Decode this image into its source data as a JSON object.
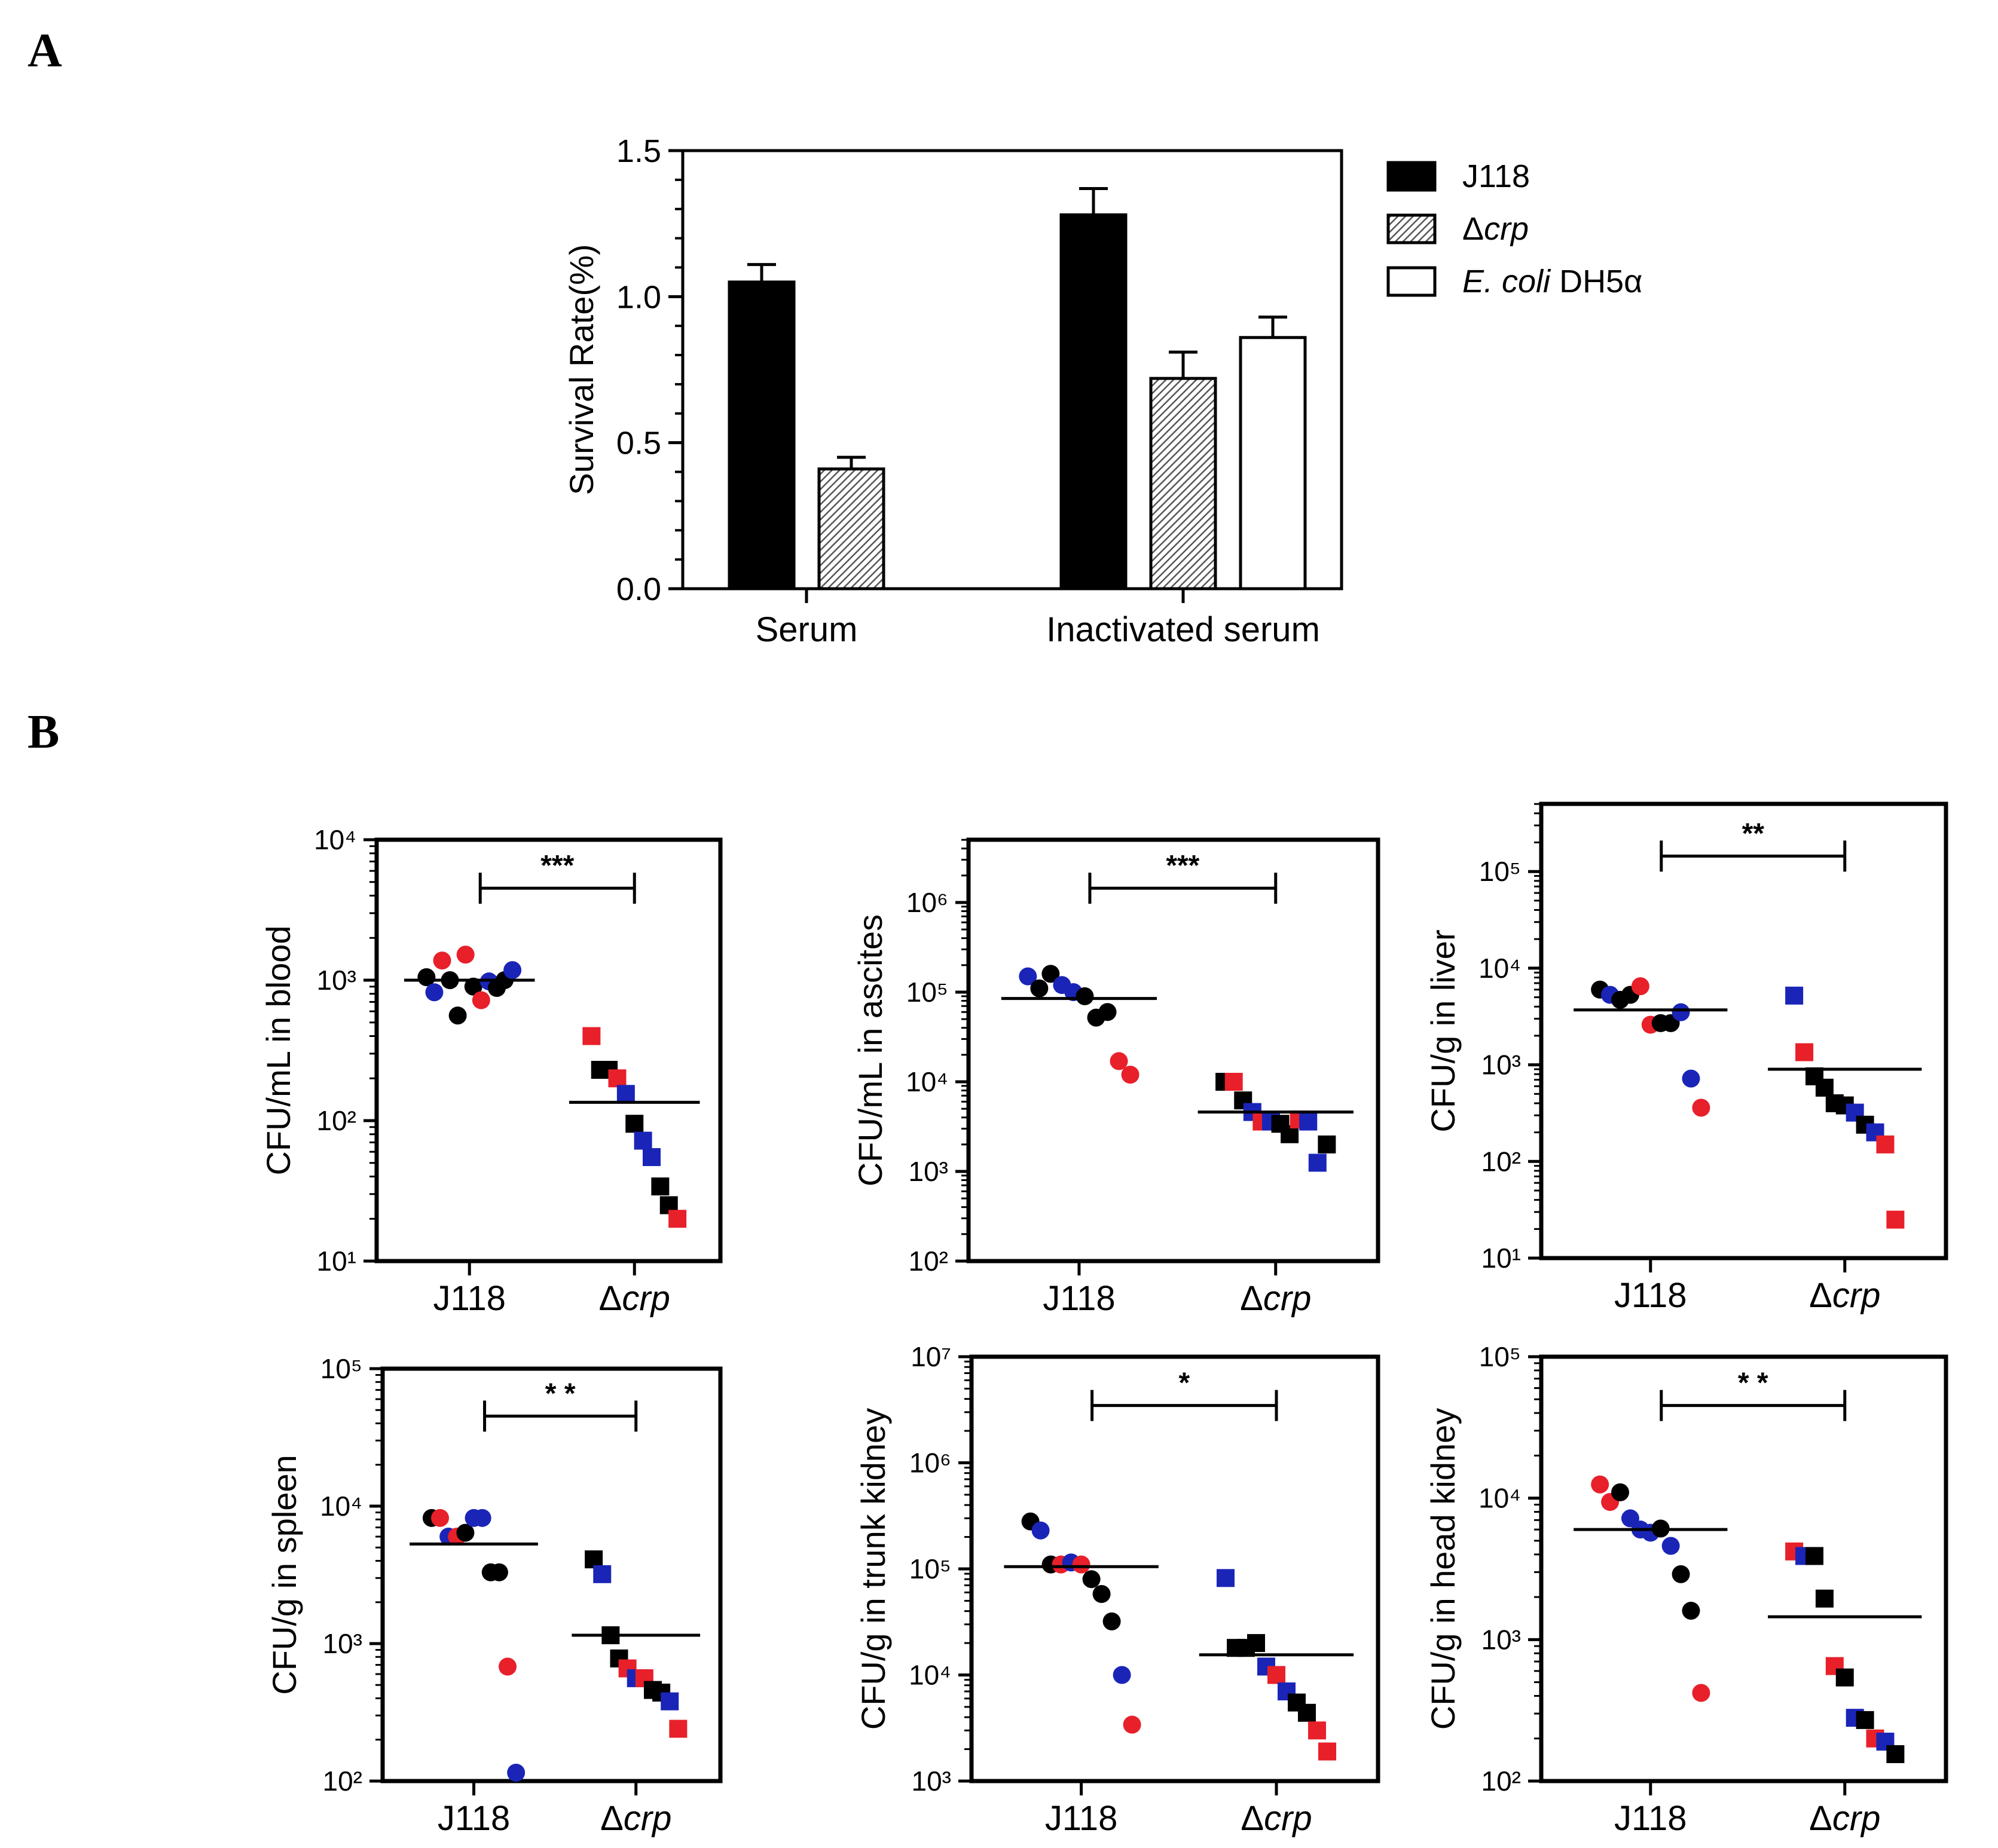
{
  "panels": {
    "a_label": "A",
    "b_label": "B"
  },
  "colors": {
    "black": "#000000",
    "red": "#e8202a",
    "blue": "#1a25b8",
    "hatch": "#555555"
  },
  "chart_data": [
    {
      "type": "bar",
      "panel": "A",
      "ylabel": "Survival Rate(%)",
      "ylim": [
        0,
        1.5
      ],
      "yticks": [
        "0.0",
        "0.5",
        "1.0",
        "1.5"
      ],
      "categories": [
        "Serum",
        "Inactivated serum"
      ],
      "series": [
        {
          "name": "J118",
          "style": "solid-black",
          "values": [
            1.05,
            1.28
          ],
          "errors": [
            0.06,
            0.09
          ]
        },
        {
          "name": "Δcrp",
          "name_prefix": "Δ",
          "name_italic": "crp",
          "style": "hatched",
          "values": [
            0.41,
            0.72
          ],
          "errors": [
            0.04,
            0.09
          ]
        },
        {
          "name": "E. coli DH5α",
          "name_italic": "E. coli",
          "name_rest": " DH5α",
          "style": "open-white",
          "values": [
            null,
            0.86
          ],
          "errors": [
            null,
            0.07
          ]
        }
      ],
      "legend_position": "right"
    },
    {
      "type": "scatter",
      "panel": "B",
      "scale": "log",
      "ylabel": "CFU/mL in blood",
      "ylim_exp": [
        1,
        4
      ],
      "categories": [
        "J118",
        "Δcrp"
      ],
      "significance": "***",
      "means": [
        1000,
        135
      ],
      "groups": [
        [
          {
            "v": 1050,
            "c": "black"
          },
          {
            "v": 820,
            "c": "blue"
          },
          {
            "v": 1380,
            "c": "red"
          },
          {
            "v": 1000,
            "c": "black"
          },
          {
            "v": 560,
            "c": "black"
          },
          {
            "v": 1520,
            "c": "red"
          },
          {
            "v": 900,
            "c": "black"
          },
          {
            "v": 720,
            "c": "red"
          },
          {
            "v": 980,
            "c": "blue"
          },
          {
            "v": 880,
            "c": "black"
          },
          {
            "v": 1000,
            "c": "black"
          },
          {
            "v": 1180,
            "c": "blue"
          }
        ],
        [
          {
            "v": 400,
            "c": "red"
          },
          {
            "v": 230,
            "c": "black"
          },
          {
            "v": 230,
            "c": "black"
          },
          {
            "v": 200,
            "c": "red"
          },
          {
            "v": 155,
            "c": "blue"
          },
          {
            "v": 95,
            "c": "black"
          },
          {
            "v": 72,
            "c": "blue"
          },
          {
            "v": 55,
            "c": "blue"
          },
          {
            "v": 34,
            "c": "black"
          },
          {
            "v": 25,
            "c": "black"
          },
          {
            "v": 20,
            "c": "red"
          }
        ]
      ]
    },
    {
      "type": "scatter",
      "panel": "B",
      "scale": "log",
      "ylabel": "CFU/mL in ascites",
      "ylim_exp": [
        2,
        6.7
      ],
      "categories": [
        "J118",
        "Δcrp"
      ],
      "significance": "***",
      "means": [
        85000,
        4600
      ],
      "groups": [
        [
          {
            "v": 150000,
            "c": "blue"
          },
          {
            "v": 110000,
            "c": "black"
          },
          {
            "v": 160000,
            "c": "black"
          },
          {
            "v": 120000,
            "c": "blue"
          },
          {
            "v": 100000,
            "c": "blue"
          },
          {
            "v": 90000,
            "c": "black"
          },
          {
            "v": 52000,
            "c": "black"
          },
          {
            "v": 60000,
            "c": "black"
          },
          {
            "v": 17000,
            "c": "red"
          },
          {
            "v": 12000,
            "c": "red"
          }
        ],
        [
          {
            "v": 10000,
            "c": "black"
          },
          {
            "v": 10000,
            "c": "red"
          },
          {
            "v": 6200,
            "c": "black"
          },
          {
            "v": 4600,
            "c": "blue"
          },
          {
            "v": 3600,
            "c": "red"
          },
          {
            "v": 3600,
            "c": "blue"
          },
          {
            "v": 3400,
            "c": "black"
          },
          {
            "v": 2600,
            "c": "black"
          },
          {
            "v": 3800,
            "c": "red"
          },
          {
            "v": 3600,
            "c": "blue"
          },
          {
            "v": 1250,
            "c": "blue"
          },
          {
            "v": 2000,
            "c": "black"
          }
        ]
      ]
    },
    {
      "type": "scatter",
      "panel": "B",
      "scale": "log",
      "ylabel": "CFU/g in liver",
      "ylim_exp": [
        1,
        5.7
      ],
      "categories": [
        "J118",
        "Δcrp"
      ],
      "significance": "**",
      "means": [
        3700,
        900
      ],
      "groups": [
        [
          {
            "v": 6000,
            "c": "black"
          },
          {
            "v": 5300,
            "c": "blue"
          },
          {
            "v": 4700,
            "c": "black"
          },
          {
            "v": 5300,
            "c": "black"
          },
          {
            "v": 6500,
            "c": "red"
          },
          {
            "v": 2600,
            "c": "red"
          },
          {
            "v": 2700,
            "c": "black"
          },
          {
            "v": 2700,
            "c": "black"
          },
          {
            "v": 3500,
            "c": "blue"
          },
          {
            "v": 720,
            "c": "blue"
          },
          {
            "v": 360,
            "c": "red"
          }
        ],
        [
          {
            "v": 5200,
            "c": "blue"
          },
          {
            "v": 1350,
            "c": "red"
          },
          {
            "v": 760,
            "c": "black"
          },
          {
            "v": 580,
            "c": "black"
          },
          {
            "v": 400,
            "c": "black"
          },
          {
            "v": 380,
            "c": "black"
          },
          {
            "v": 320,
            "c": "blue"
          },
          {
            "v": 240,
            "c": "black"
          },
          {
            "v": 200,
            "c": "blue"
          },
          {
            "v": 150,
            "c": "red"
          },
          {
            "v": 25,
            "c": "red"
          }
        ]
      ]
    },
    {
      "type": "scatter",
      "panel": "B",
      "scale": "log",
      "ylabel": "CFU/g in spleen",
      "ylim_exp": [
        2,
        5
      ],
      "categories": [
        "J118",
        "Δcrp"
      ],
      "significance": "* *",
      "means": [
        5300,
        1150
      ],
      "groups": [
        [
          {
            "v": 8200,
            "c": "black"
          },
          {
            "v": 8200,
            "c": "red"
          },
          {
            "v": 6000,
            "c": "blue"
          },
          {
            "v": 6000,
            "c": "red"
          },
          {
            "v": 6400,
            "c": "black"
          },
          {
            "v": 8200,
            "c": "blue"
          },
          {
            "v": 8200,
            "c": "blue"
          },
          {
            "v": 3300,
            "c": "black"
          },
          {
            "v": 3300,
            "c": "black"
          },
          {
            "v": 680,
            "c": "red"
          },
          {
            "v": 115,
            "c": "blue"
          }
        ],
        [
          {
            "v": 4100,
            "c": "black"
          },
          {
            "v": 3200,
            "c": "blue"
          },
          {
            "v": 1150,
            "c": "black"
          },
          {
            "v": 780,
            "c": "black"
          },
          {
            "v": 660,
            "c": "red"
          },
          {
            "v": 560,
            "c": "blue"
          },
          {
            "v": 560,
            "c": "red"
          },
          {
            "v": 460,
            "c": "black"
          },
          {
            "v": 440,
            "c": "black"
          },
          {
            "v": 380,
            "c": "blue"
          },
          {
            "v": 240,
            "c": "red"
          }
        ]
      ]
    },
    {
      "type": "scatter",
      "panel": "B",
      "scale": "log",
      "ylabel": "CFU/g in trunk kidney",
      "ylim_exp": [
        3,
        7
      ],
      "categories": [
        "J118",
        "Δcrp"
      ],
      "significance": "*",
      "means": [
        105000,
        15500
      ],
      "groups": [
        [
          {
            "v": 280000,
            "c": "black"
          },
          {
            "v": 230000,
            "c": "blue"
          },
          {
            "v": 110000,
            "c": "black"
          },
          {
            "v": 110000,
            "c": "red"
          },
          {
            "v": 115000,
            "c": "blue"
          },
          {
            "v": 110000,
            "c": "red"
          },
          {
            "v": 80000,
            "c": "black"
          },
          {
            "v": 58000,
            "c": "black"
          },
          {
            "v": 32000,
            "c": "black"
          },
          {
            "v": 10000,
            "c": "blue"
          },
          {
            "v": 3400,
            "c": "red"
          }
        ],
        [
          {
            "v": 82000,
            "c": "blue"
          },
          {
            "v": 18000,
            "c": "black"
          },
          {
            "v": 18000,
            "c": "black"
          },
          {
            "v": 20000,
            "c": "black"
          },
          {
            "v": 12000,
            "c": "blue"
          },
          {
            "v": 10000,
            "c": "red"
          },
          {
            "v": 7000,
            "c": "blue"
          },
          {
            "v": 5500,
            "c": "black"
          },
          {
            "v": 4400,
            "c": "black"
          },
          {
            "v": 3000,
            "c": "red"
          },
          {
            "v": 1900,
            "c": "red"
          }
        ]
      ]
    },
    {
      "type": "scatter",
      "panel": "B",
      "scale": "log",
      "ylabel": "CFU/g in head kidney",
      "ylim_exp": [
        2,
        5
      ],
      "categories": [
        "J118",
        "Δcrp"
      ],
      "significance": "* *",
      "means": [
        6000,
        1450
      ],
      "groups": [
        [
          {
            "v": 12500,
            "c": "red"
          },
          {
            "v": 9400,
            "c": "red"
          },
          {
            "v": 11000,
            "c": "black"
          },
          {
            "v": 7200,
            "c": "blue"
          },
          {
            "v": 6000,
            "c": "blue"
          },
          {
            "v": 5700,
            "c": "blue"
          },
          {
            "v": 6100,
            "c": "black"
          },
          {
            "v": 4600,
            "c": "blue"
          },
          {
            "v": 2900,
            "c": "black"
          },
          {
            "v": 1600,
            "c": "black"
          },
          {
            "v": 420,
            "c": "red"
          }
        ],
        [
          {
            "v": 4200,
            "c": "red"
          },
          {
            "v": 3900,
            "c": "blue"
          },
          {
            "v": 3900,
            "c": "black"
          },
          {
            "v": 1950,
            "c": "black"
          },
          {
            "v": 650,
            "c": "red"
          },
          {
            "v": 540,
            "c": "black"
          },
          {
            "v": 280,
            "c": "blue"
          },
          {
            "v": 270,
            "c": "black"
          },
          {
            "v": 200,
            "c": "red"
          },
          {
            "v": 190,
            "c": "blue"
          },
          {
            "v": 155,
            "c": "black"
          }
        ]
      ]
    }
  ]
}
